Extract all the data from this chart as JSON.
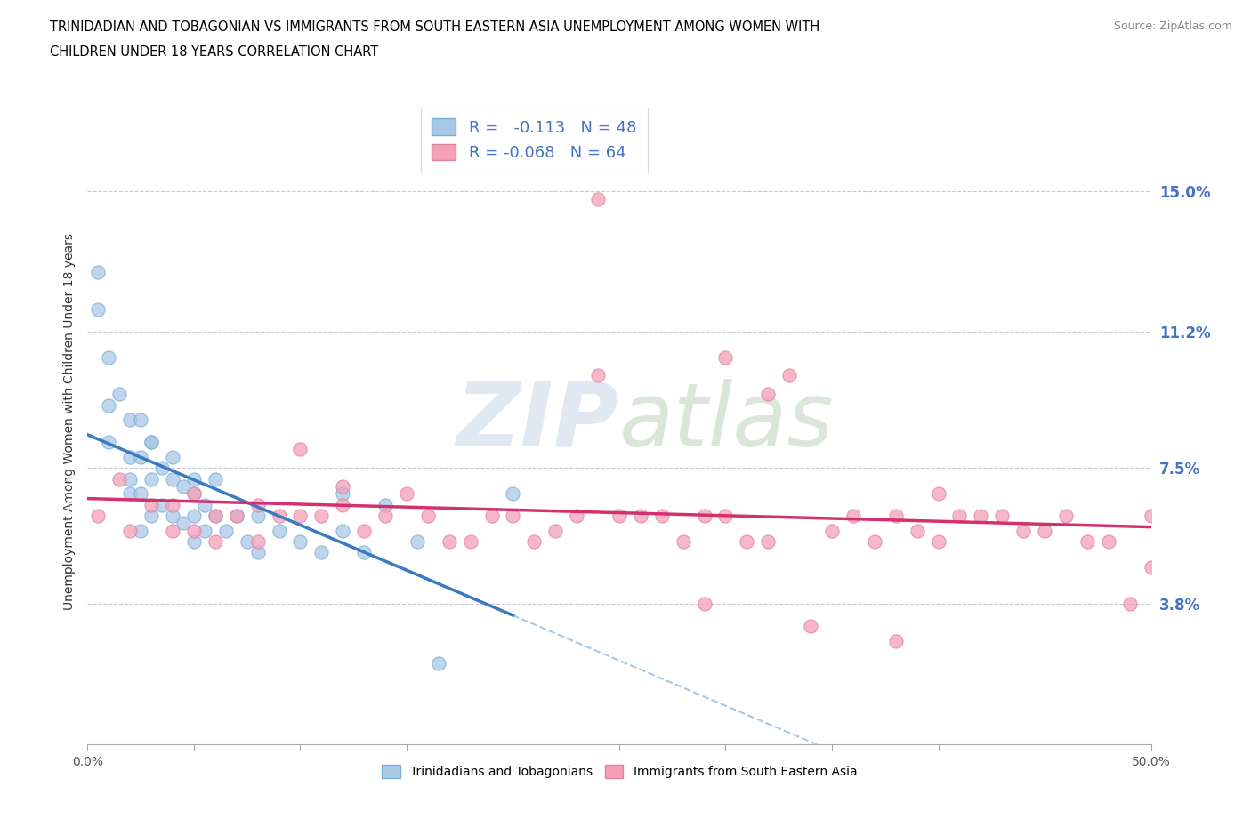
{
  "title_line1": "TRINIDADIAN AND TOBAGONIAN VS IMMIGRANTS FROM SOUTH EASTERN ASIA UNEMPLOYMENT AMONG WOMEN WITH",
  "title_line2": "CHILDREN UNDER 18 YEARS CORRELATION CHART",
  "source_text": "Source: ZipAtlas.com",
  "ylabel": "Unemployment Among Women with Children Under 18 years",
  "xlim": [
    0.0,
    0.5
  ],
  "ylim": [
    0.0,
    0.175
  ],
  "ytick_positions": [
    0.038,
    0.075,
    0.112,
    0.15
  ],
  "ytick_labels": [
    "3.8%",
    "7.5%",
    "11.2%",
    "15.0%"
  ],
  "blue_color": "#a8c8e8",
  "pink_color": "#f4a0b8",
  "blue_line_color": "#3a7abf",
  "pink_line_color": "#d43070",
  "blue_dash_color": "#a8c8e8",
  "tick_label_color": "#4472C4",
  "legend_label1": "Trinidadians and Tobagonians",
  "legend_label2": "Immigrants from South Eastern Asia",
  "R1": -0.113,
  "N1": 48,
  "R2": -0.068,
  "N2": 64,
  "blue_scatter_x": [
    0.005,
    0.005,
    0.01,
    0.01,
    0.01,
    0.015,
    0.02,
    0.02,
    0.02,
    0.025,
    0.025,
    0.025,
    0.03,
    0.03,
    0.03,
    0.035,
    0.035,
    0.04,
    0.04,
    0.04,
    0.045,
    0.045,
    0.05,
    0.05,
    0.05,
    0.055,
    0.055,
    0.06,
    0.065,
    0.07,
    0.075,
    0.08,
    0.09,
    0.1,
    0.11,
    0.12,
    0.13,
    0.14,
    0.155,
    0.165,
    0.02,
    0.025,
    0.03,
    0.05,
    0.06,
    0.08,
    0.12,
    0.2
  ],
  "blue_scatter_y": [
    0.128,
    0.118,
    0.105,
    0.092,
    0.082,
    0.095,
    0.088,
    0.078,
    0.068,
    0.088,
    0.078,
    0.068,
    0.082,
    0.072,
    0.062,
    0.075,
    0.065,
    0.078,
    0.072,
    0.062,
    0.07,
    0.06,
    0.068,
    0.062,
    0.055,
    0.065,
    0.058,
    0.062,
    0.058,
    0.062,
    0.055,
    0.052,
    0.058,
    0.055,
    0.052,
    0.058,
    0.052,
    0.065,
    0.055,
    0.022,
    0.072,
    0.058,
    0.082,
    0.072,
    0.072,
    0.062,
    0.068,
    0.068
  ],
  "pink_scatter_x": [
    0.24,
    0.005,
    0.03,
    0.02,
    0.04,
    0.04,
    0.05,
    0.05,
    0.06,
    0.06,
    0.07,
    0.08,
    0.08,
    0.09,
    0.1,
    0.1,
    0.11,
    0.12,
    0.13,
    0.14,
    0.15,
    0.16,
    0.17,
    0.18,
    0.19,
    0.2,
    0.21,
    0.22,
    0.23,
    0.25,
    0.26,
    0.27,
    0.28,
    0.29,
    0.3,
    0.31,
    0.32,
    0.33,
    0.35,
    0.36,
    0.37,
    0.38,
    0.39,
    0.4,
    0.41,
    0.42,
    0.43,
    0.44,
    0.45,
    0.46,
    0.47,
    0.48,
    0.49,
    0.5,
    0.5,
    0.29,
    0.34,
    0.38,
    0.24,
    0.3,
    0.32,
    0.4,
    0.015,
    0.12
  ],
  "pink_scatter_y": [
    0.148,
    0.062,
    0.065,
    0.058,
    0.065,
    0.058,
    0.068,
    0.058,
    0.062,
    0.055,
    0.062,
    0.065,
    0.055,
    0.062,
    0.08,
    0.062,
    0.062,
    0.07,
    0.058,
    0.062,
    0.068,
    0.062,
    0.055,
    0.055,
    0.062,
    0.062,
    0.055,
    0.058,
    0.062,
    0.062,
    0.062,
    0.062,
    0.055,
    0.062,
    0.062,
    0.055,
    0.055,
    0.1,
    0.058,
    0.062,
    0.055,
    0.062,
    0.058,
    0.055,
    0.062,
    0.062,
    0.062,
    0.058,
    0.058,
    0.062,
    0.055,
    0.055,
    0.038,
    0.062,
    0.048,
    0.038,
    0.032,
    0.028,
    0.1,
    0.105,
    0.095,
    0.068,
    0.072,
    0.065
  ],
  "background_color": "#ffffff",
  "watermark_color": "#c8d8e8"
}
